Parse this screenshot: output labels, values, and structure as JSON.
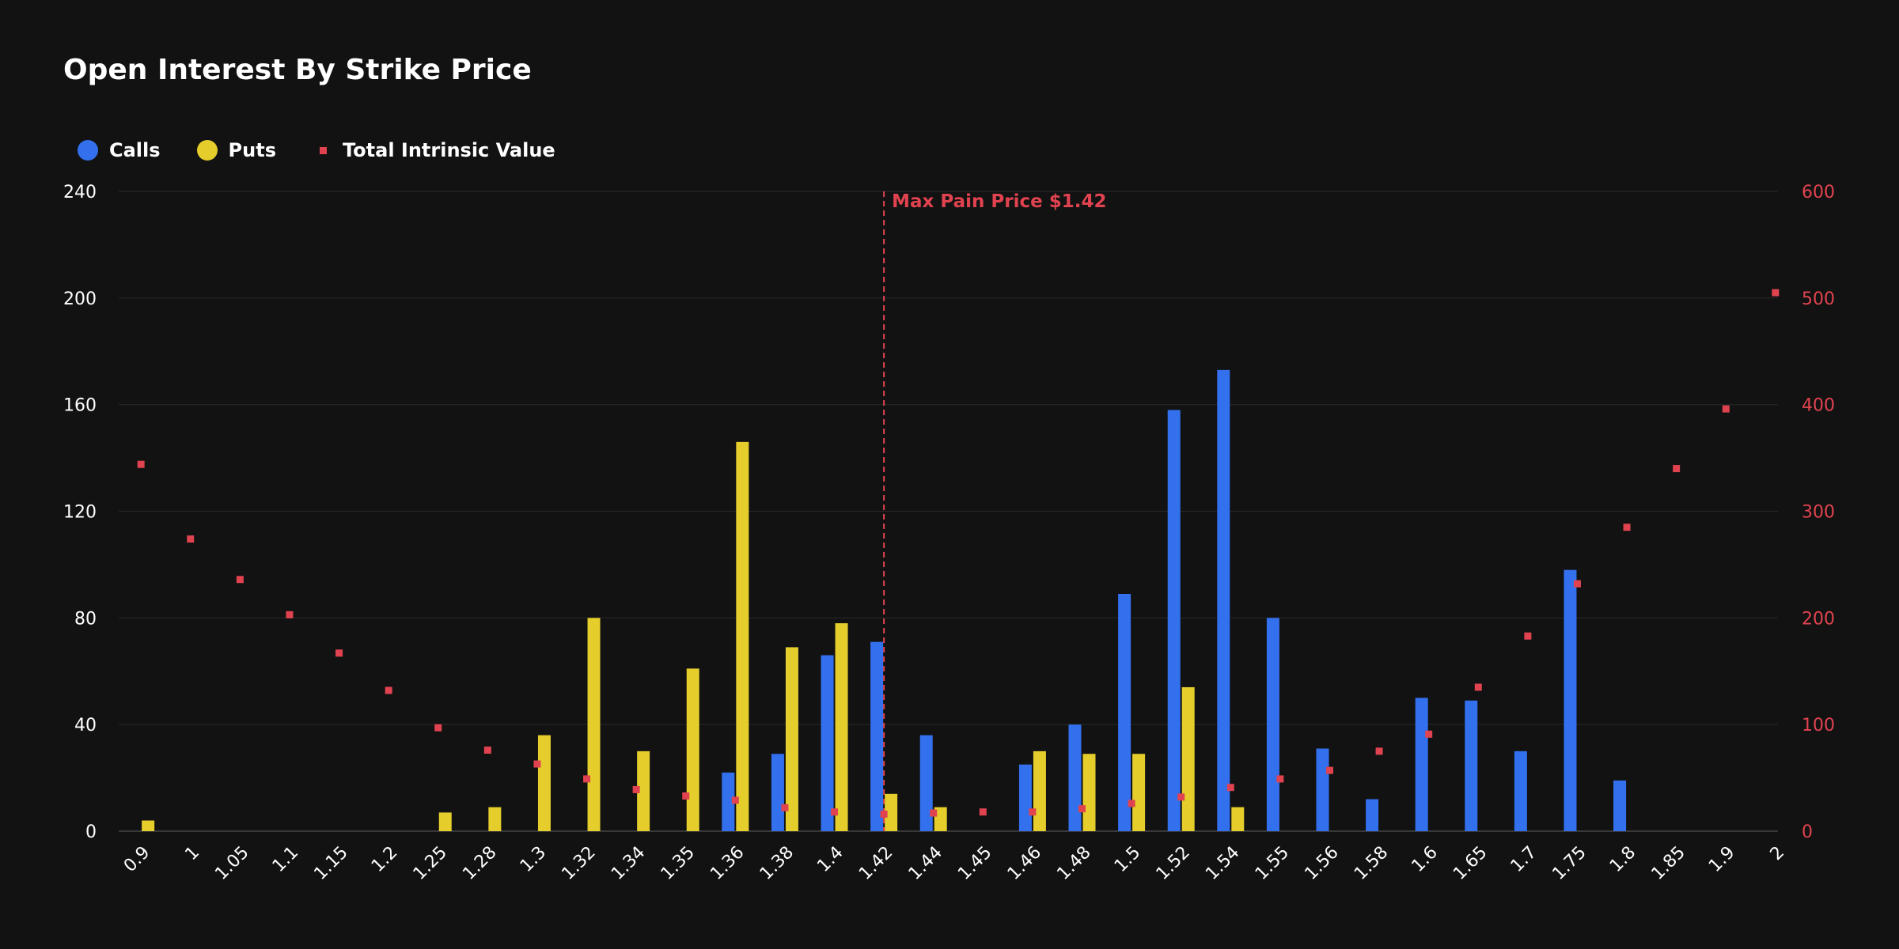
{
  "colors": {
    "calls": "#3370ee",
    "puts": "#e5cd2c",
    "intrinsic": "#e0434f",
    "background": "#121212",
    "grid": "#262626",
    "axis": "#444444"
  },
  "chart_data": {
    "type": "bar",
    "title": "Open Interest By Strike Price",
    "legend": [
      "Calls",
      "Puts",
      "Total Intrinsic Value"
    ],
    "legend_position": "top-left",
    "grid": true,
    "categories": [
      "0.9",
      "1",
      "1.05",
      "1.1",
      "1.15",
      "1.2",
      "1.25",
      "1.28",
      "1.3",
      "1.32",
      "1.34",
      "1.35",
      "1.36",
      "1.38",
      "1.4",
      "1.42",
      "1.44",
      "1.45",
      "1.46",
      "1.48",
      "1.5",
      "1.52",
      "1.54",
      "1.55",
      "1.56",
      "1.58",
      "1.6",
      "1.65",
      "1.7",
      "1.75",
      "1.8",
      "1.85",
      "1.9",
      "2"
    ],
    "series": [
      {
        "name": "Calls",
        "type": "bar",
        "axis": "left",
        "values": [
          0,
          0,
          0,
          0,
          0,
          0,
          0,
          0,
          0,
          0,
          0,
          0,
          22,
          29,
          66,
          71,
          36,
          0,
          25,
          40,
          89,
          158,
          173,
          80,
          31,
          12,
          50,
          49,
          30,
          98,
          19,
          0,
          0,
          0
        ]
      },
      {
        "name": "Puts",
        "type": "bar",
        "axis": "left",
        "values": [
          4,
          0,
          0,
          0,
          0,
          0,
          7,
          9,
          36,
          80,
          30,
          61,
          146,
          69,
          78,
          14,
          9,
          0,
          30,
          29,
          29,
          54,
          9,
          0,
          0,
          0,
          0,
          0,
          0,
          0,
          0,
          0,
          0,
          0
        ]
      },
      {
        "name": "Total Intrinsic Value",
        "type": "scatter",
        "axis": "right",
        "values": [
          344,
          274,
          236,
          203,
          167,
          132,
          97,
          76,
          63,
          49,
          39,
          33,
          29,
          22,
          18,
          16,
          17,
          18,
          18,
          21,
          26,
          32,
          41,
          49,
          57,
          75,
          91,
          135,
          183,
          232,
          285,
          340,
          396,
          505
        ]
      }
    ],
    "yleft": {
      "range": [
        0,
        240
      ],
      "ticks": [
        0,
        40,
        80,
        120,
        160,
        200,
        240
      ]
    },
    "yright": {
      "range": [
        0,
        600
      ],
      "ticks": [
        0,
        100,
        200,
        300,
        400,
        500,
        600
      ]
    },
    "annotation": {
      "label": "Max Pain Price $1.42",
      "category": "1.42"
    }
  }
}
